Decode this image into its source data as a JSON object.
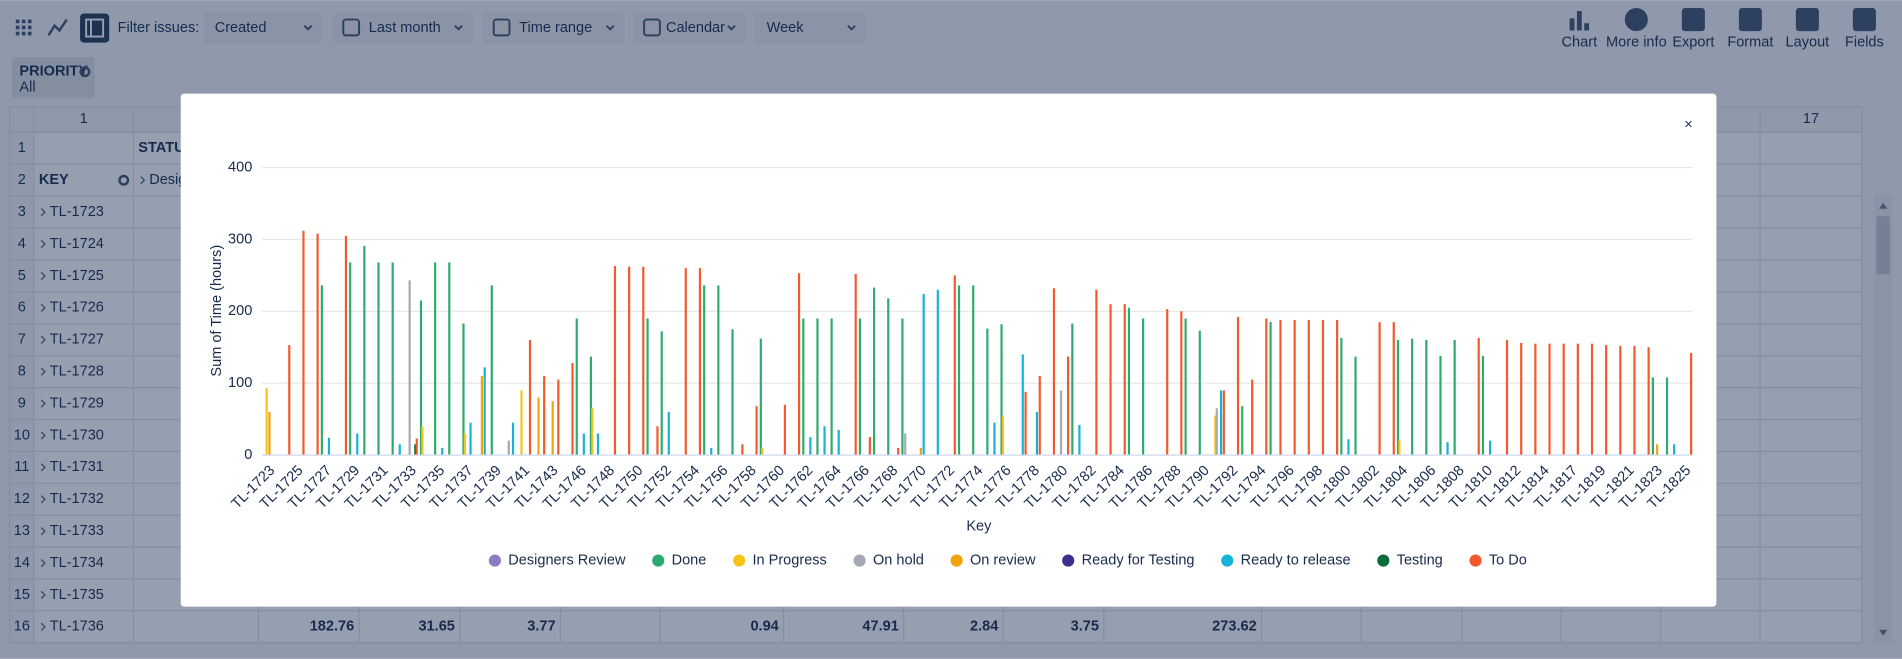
{
  "toolbar": {
    "filter_label": "Filter issues:",
    "filters": [
      "Created",
      "Last month",
      "Time range",
      "Calendar",
      "Week"
    ],
    "buttons": [
      "Chart",
      "More info",
      "Export",
      "Format",
      "Layout",
      "Fields"
    ]
  },
  "priority": {
    "label": "PRIORITY",
    "value": "All"
  },
  "grid": {
    "column_numbers": [
      1,
      17
    ],
    "status_header": "STATUS",
    "key_header": "KEY",
    "status_value": "Desig",
    "row_numbers": [
      1,
      2,
      3,
      4,
      5,
      6,
      7,
      8,
      9,
      10,
      11,
      12,
      13,
      14,
      15,
      16
    ],
    "keys": [
      "TL-1723",
      "TL-1724",
      "TL-1725",
      "TL-1726",
      "TL-1727",
      "TL-1728",
      "TL-1729",
      "TL-1730",
      "TL-1731",
      "TL-1732",
      "TL-1733",
      "TL-1734",
      "TL-1735",
      "TL-1736"
    ],
    "row16_values": [
      182.76,
      31.65,
      3.77,
      0.94,
      47.91,
      2.84,
      3.75,
      273.62
    ]
  },
  "modal": {
    "close": "×"
  },
  "chart_data": {
    "type": "bar",
    "y_label": "Sum of Time (hours)",
    "x_label": "Key",
    "ylim": [
      0,
      400
    ],
    "yticks": [
      0,
      100,
      200,
      300,
      400
    ],
    "grid": true,
    "legend": "bottom",
    "categories": [
      "TL-1723",
      null,
      "TL-1725",
      null,
      "TL-1727",
      null,
      "TL-1729",
      null,
      "TL-1731",
      null,
      "TL-1733",
      null,
      "TL-1735",
      null,
      "TL-1737",
      null,
      "TL-1739",
      null,
      "TL-1741",
      null,
      "TL-1743",
      null,
      "TL-1746",
      null,
      "TL-1748",
      null,
      "TL-1750",
      null,
      "TL-1752",
      null,
      "TL-1754",
      null,
      "TL-1756",
      null,
      "TL-1758",
      null,
      "TL-1760",
      null,
      "TL-1762",
      null,
      "TL-1764",
      null,
      "TL-1766",
      null,
      "TL-1768",
      null,
      "TL-1770",
      null,
      "TL-1772",
      null,
      "TL-1774",
      null,
      "TL-1776",
      null,
      "TL-1778",
      null,
      "TL-1780",
      null,
      "TL-1782",
      null,
      "TL-1784",
      null,
      "TL-1786",
      null,
      "TL-1788",
      null,
      "TL-1790",
      null,
      "TL-1792",
      null,
      "TL-1794",
      null,
      "TL-1796",
      null,
      "TL-1798",
      null,
      "TL-1800",
      null,
      "TL-1802",
      null,
      "TL-1804",
      null,
      "TL-1806",
      null,
      "TL-1808",
      null,
      "TL-1810",
      null,
      "TL-1812",
      null,
      "TL-1814",
      null,
      "TL-1817",
      null,
      "TL-1819",
      null,
      "TL-1821",
      null,
      "TL-1823",
      null,
      "TL-1825"
    ],
    "series": [
      {
        "name": "Designers Review",
        "color": "#8e7cc3",
        "values": [
          0,
          0,
          0,
          0,
          0,
          0,
          0,
          0,
          0,
          0,
          0,
          0,
          0,
          0,
          0,
          0,
          0,
          0,
          0,
          0,
          0,
          0,
          0,
          0,
          0,
          0,
          0,
          0,
          0,
          0,
          0,
          0,
          0,
          0,
          0,
          0,
          0,
          0,
          0,
          0,
          0,
          0,
          0,
          0,
          0,
          0,
          0,
          0,
          0,
          0,
          0,
          0,
          0,
          0,
          0,
          0,
          0,
          0,
          0,
          0,
          0,
          0,
          0,
          0,
          0,
          0,
          0,
          0,
          0,
          0,
          0,
          0,
          0,
          0,
          0,
          0,
          0,
          0,
          0,
          0,
          0,
          0,
          0,
          0,
          0,
          0,
          0,
          0,
          0,
          0,
          0,
          0,
          0,
          0,
          0,
          0,
          0,
          0,
          0,
          0,
          0
        ]
      },
      {
        "name": "Done",
        "color": "#2eaa6e",
        "values": [
          0,
          0,
          0,
          0,
          236,
          0,
          268,
          291,
          268,
          268,
          0,
          215,
          268,
          268,
          183,
          0,
          236,
          0,
          0,
          0,
          0,
          0,
          190,
          137,
          0,
          0,
          0,
          190,
          172,
          0,
          0,
          236,
          236,
          175,
          0,
          162,
          0,
          0,
          190,
          190,
          190,
          0,
          190,
          233,
          218,
          190,
          0,
          0,
          0,
          236,
          236,
          176,
          182,
          0,
          0,
          0,
          0,
          183,
          0,
          0,
          0,
          205,
          190,
          0,
          0,
          190,
          173,
          0,
          0,
          68,
          0,
          185,
          0,
          0,
          0,
          0,
          163,
          137,
          0,
          0,
          160,
          162,
          160,
          138,
          160,
          0,
          138,
          0,
          0,
          0,
          0,
          0,
          0,
          0,
          0,
          0,
          0,
          0,
          108,
          108,
          0
        ]
      },
      {
        "name": "In Progress",
        "color": "#f5c518",
        "values": [
          93,
          0,
          0,
          0,
          0,
          0,
          0,
          0,
          0,
          0,
          0,
          40,
          0,
          0,
          30,
          0,
          0,
          0,
          90,
          0,
          0,
          0,
          0,
          65,
          0,
          0,
          0,
          0,
          0,
          0,
          0,
          0,
          0,
          0,
          0,
          10,
          0,
          0,
          0,
          0,
          0,
          0,
          0,
          0,
          0,
          0,
          0,
          0,
          0,
          0,
          0,
          0,
          55,
          0,
          0,
          0,
          0,
          0,
          0,
          0,
          0,
          0,
          0,
          0,
          0,
          0,
          0,
          55,
          0,
          0,
          0,
          0,
          0,
          0,
          0,
          0,
          0,
          0,
          0,
          0,
          20,
          0,
          0,
          0,
          0,
          0,
          0,
          0,
          0,
          0,
          0,
          0,
          0,
          0,
          0,
          0,
          0,
          0,
          0,
          0,
          0
        ]
      },
      {
        "name": "On hold",
        "color": "#a5a9b6",
        "values": [
          0,
          0,
          0,
          0,
          0,
          0,
          0,
          0,
          0,
          0,
          243,
          0,
          0,
          0,
          0,
          0,
          0,
          20,
          0,
          0,
          0,
          0,
          0,
          0,
          0,
          0,
          0,
          0,
          0,
          0,
          0,
          0,
          0,
          0,
          0,
          0,
          0,
          0,
          0,
          0,
          0,
          0,
          0,
          0,
          0,
          30,
          0,
          0,
          0,
          0,
          0,
          0,
          0,
          0,
          0,
          0,
          90,
          0,
          0,
          0,
          0,
          0,
          0,
          0,
          0,
          0,
          0,
          65,
          0,
          0,
          0,
          0,
          0,
          0,
          0,
          0,
          0,
          0,
          0,
          0,
          0,
          0,
          0,
          0,
          0,
          0,
          0,
          0,
          0,
          0,
          0,
          0,
          0,
          0,
          0,
          0,
          0,
          0,
          0,
          0,
          0
        ]
      },
      {
        "name": "On review",
        "color": "#f0a30a",
        "values": [
          60,
          0,
          0,
          0,
          0,
          0,
          0,
          0,
          0,
          0,
          0,
          0,
          0,
          0,
          0,
          110,
          0,
          0,
          0,
          80,
          75,
          0,
          0,
          0,
          0,
          0,
          0,
          0,
          0,
          0,
          0,
          0,
          0,
          0,
          0,
          0,
          0,
          0,
          0,
          0,
          0,
          0,
          0,
          0,
          0,
          0,
          10,
          0,
          0,
          0,
          0,
          0,
          0,
          0,
          0,
          0,
          0,
          0,
          0,
          0,
          0,
          0,
          0,
          0,
          0,
          0,
          0,
          0,
          0,
          0,
          0,
          0,
          0,
          0,
          0,
          0,
          0,
          0,
          0,
          0,
          0,
          0,
          0,
          0,
          0,
          0,
          0,
          0,
          0,
          0,
          0,
          0,
          0,
          0,
          0,
          0,
          0,
          0,
          15,
          0,
          0
        ]
      },
      {
        "name": "Ready for Testing",
        "color": "#3b2f8f",
        "values": [
          0,
          0,
          0,
          0,
          0,
          0,
          0,
          0,
          0,
          0,
          0,
          0,
          0,
          0,
          0,
          0,
          0,
          0,
          0,
          0,
          0,
          0,
          0,
          0,
          0,
          0,
          0,
          0,
          0,
          0,
          0,
          0,
          0,
          0,
          0,
          0,
          0,
          0,
          0,
          0,
          0,
          0,
          0,
          0,
          0,
          0,
          0,
          0,
          0,
          0,
          0,
          0,
          0,
          0,
          0,
          0,
          0,
          0,
          0,
          0,
          0,
          0,
          0,
          0,
          0,
          0,
          0,
          0,
          0,
          0,
          0,
          0,
          0,
          0,
          0,
          0,
          0,
          0,
          0,
          0,
          0,
          0,
          0,
          0,
          0,
          0,
          0,
          0,
          0,
          0,
          0,
          0,
          0,
          0,
          0,
          0,
          0,
          0,
          0,
          0,
          0
        ]
      },
      {
        "name": "Ready to release",
        "color": "#17b3d6",
        "values": [
          0,
          0,
          0,
          0,
          24,
          0,
          30,
          0,
          0,
          15,
          0,
          0,
          10,
          0,
          45,
          122,
          0,
          45,
          0,
          0,
          0,
          0,
          30,
          30,
          0,
          0,
          0,
          0,
          60,
          0,
          0,
          10,
          0,
          0,
          0,
          0,
          0,
          0,
          25,
          40,
          35,
          0,
          0,
          0,
          0,
          0,
          224,
          230,
          0,
          0,
          0,
          45,
          0,
          140,
          60,
          0,
          0,
          42,
          0,
          0,
          0,
          0,
          0,
          0,
          0,
          0,
          0,
          90,
          0,
          0,
          0,
          0,
          0,
          0,
          0,
          0,
          22,
          0,
          0,
          0,
          0,
          0,
          0,
          18,
          0,
          0,
          20,
          0,
          0,
          0,
          0,
          0,
          0,
          0,
          0,
          0,
          0,
          0,
          0,
          15,
          0
        ]
      },
      {
        "name": "Testing",
        "color": "#0b6b3a",
        "values": [
          0,
          0,
          0,
          0,
          0,
          0,
          0,
          0,
          0,
          0,
          15,
          0,
          0,
          0,
          0,
          0,
          0,
          0,
          0,
          0,
          0,
          0,
          0,
          0,
          0,
          0,
          0,
          0,
          0,
          0,
          0,
          0,
          0,
          0,
          0,
          0,
          0,
          0,
          0,
          0,
          0,
          0,
          0,
          0,
          0,
          0,
          0,
          0,
          0,
          0,
          0,
          0,
          0,
          0,
          0,
          0,
          0,
          0,
          0,
          0,
          0,
          0,
          0,
          0,
          0,
          0,
          0,
          0,
          0,
          0,
          0,
          0,
          0,
          0,
          0,
          0,
          0,
          0,
          0,
          0,
          0,
          0,
          0,
          0,
          0,
          0,
          0,
          0,
          0,
          0,
          0,
          0,
          0,
          0,
          0,
          0,
          0,
          0,
          0,
          0,
          0
        ]
      },
      {
        "name": "To Do",
        "color": "#f25a2c",
        "values": [
          0,
          153,
          312,
          308,
          0,
          305,
          0,
          0,
          0,
          0,
          23,
          0,
          0,
          0,
          0,
          0,
          0,
          0,
          160,
          110,
          105,
          128,
          0,
          0,
          263,
          262,
          262,
          40,
          0,
          260,
          260,
          0,
          0,
          15,
          68,
          0,
          70,
          253,
          0,
          0,
          0,
          252,
          25,
          0,
          10,
          0,
          0,
          0,
          250,
          0,
          0,
          0,
          0,
          88,
          110,
          232,
          137,
          0,
          230,
          210,
          210,
          0,
          0,
          203,
          200,
          0,
          0,
          90,
          192,
          105,
          190,
          188,
          188,
          188,
          188,
          188,
          0,
          0,
          185,
          185,
          0,
          0,
          0,
          0,
          0,
          163,
          0,
          160,
          156,
          155,
          155,
          155,
          155,
          155,
          153,
          152,
          152,
          150,
          0,
          0,
          142
        ]
      }
    ]
  }
}
